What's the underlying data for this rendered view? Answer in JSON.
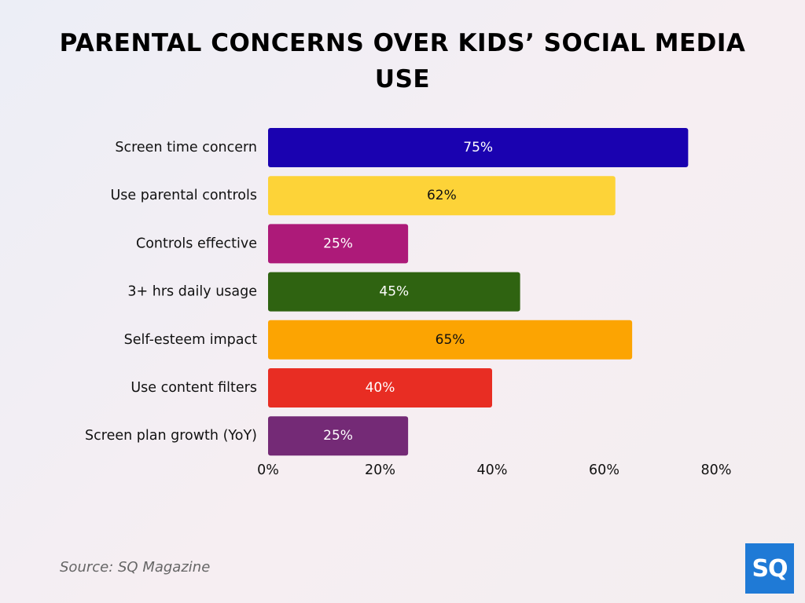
{
  "title": {
    "line1": "PARENTAL CONCERNS OVER KIDS’ SOCIAL MEDIA",
    "line2": "USE"
  },
  "source": "Source: SQ Magazine",
  "logo": {
    "text": "SQ",
    "color": "#1f7ad6"
  },
  "chart_data": {
    "type": "bar",
    "orientation": "horizontal",
    "title": "PARENTAL CONCERNS OVER KIDS’ SOCIAL MEDIA USE",
    "xlabel": "",
    "ylabel": "",
    "xlim": [
      0,
      80
    ],
    "x_ticks": [
      "0%",
      "20%",
      "40%",
      "60%",
      "80%"
    ],
    "grid": false,
    "legend": "none",
    "categories": [
      "Screen time concern",
      "Use parental controls",
      "Controls effective",
      "3+ hrs daily usage",
      "Self-esteem impact",
      "Use content filters",
      "Screen plan growth (YoY)"
    ],
    "values": [
      75,
      62,
      25,
      45,
      65,
      40,
      25
    ],
    "value_labels": [
      "75%",
      "62%",
      "25%",
      "45%",
      "65%",
      "40%",
      "25%"
    ],
    "colors": [
      "#1a02b0",
      "#fdd338",
      "#ad1a79",
      "#2f6311",
      "#fca402",
      "#e82d23",
      "#742a76"
    ],
    "label_colors": [
      "#ffffff",
      "#111111",
      "#ffffff",
      "#ffffff",
      "#111111",
      "#ffffff",
      "#ffffff"
    ]
  }
}
